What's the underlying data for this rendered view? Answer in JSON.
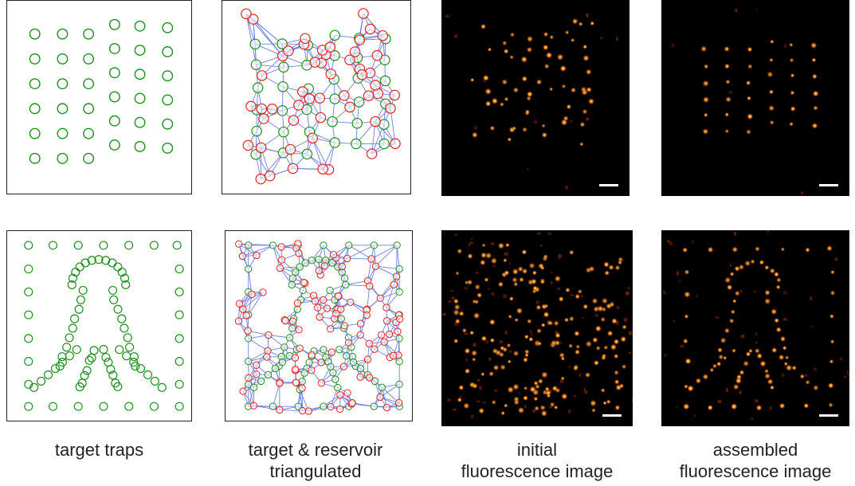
{
  "captions": {
    "col1": "target traps",
    "col2_line1": "target & reservoir",
    "col2_line2": "triangulated",
    "col3_line1": "initial",
    "col3_line2": "fluorescence image",
    "col4_line1": "assembled",
    "col4_line2": "fluorescence image"
  },
  "colors": {
    "target": "#1e8c1e",
    "reservoir": "#e02020",
    "edge": "#6b7fe0",
    "spot_core": "#fff2b0",
    "spot_glow": "#ff8c10",
    "spot_dim": "#8a2a08",
    "panel_border": "#222222",
    "image_background": "#000000"
  },
  "scale_bar_color": "#ffffff"
}
